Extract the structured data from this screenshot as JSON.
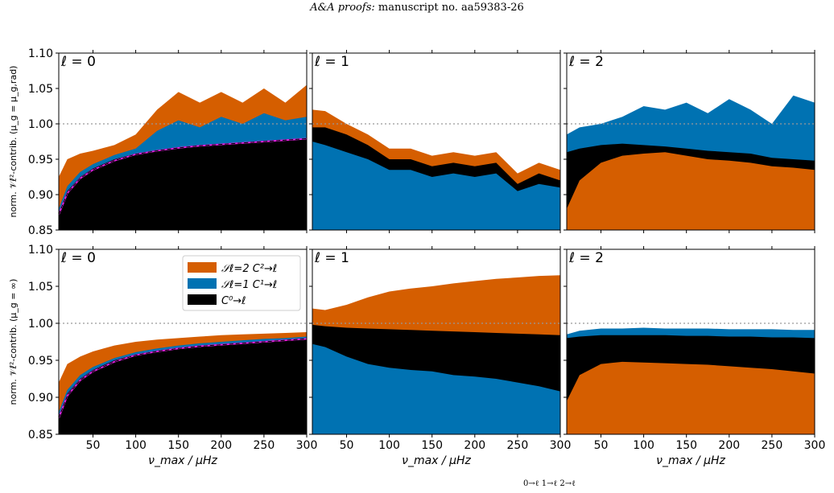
{
  "header": {
    "journal": "A&A proofs:",
    "manuscript": "manuscript no. aa59383-26"
  },
  "footer": {
    "text": "0→ℓ   1→ℓ   2→ℓ"
  },
  "colors": {
    "s2": "#D55E00",
    "s1": "#0072B2",
    "c0": "#000000",
    "fit": "#E020E0",
    "unity": "#999999"
  },
  "xaxis": {
    "label": "ν_max / μHz",
    "ticks": [
      "50",
      "100",
      "150",
      "200",
      "250",
      "300"
    ],
    "range": [
      10,
      300
    ]
  },
  "yaxis": {
    "ticks": [
      "0.85",
      "0.90",
      "0.95",
      "1.00",
      "1.05",
      "1.10"
    ],
    "range": [
      0.85,
      1.1
    ],
    "top_label": "norm. 𝒱ℓ²-contrib. (μ_g = μ_g,rad)",
    "bottom_label": "norm. 𝒱ℓ²-contrib. (μ_g = ∞)"
  },
  "legend": {
    "items": [
      {
        "label": "𝒮ℓ=2 C²→ℓ",
        "color": "#D55E00"
      },
      {
        "label": "𝒮ℓ=1 C¹→ℓ",
        "color": "#0072B2"
      },
      {
        "label": "C⁰→ℓ",
        "color": "#000000"
      }
    ]
  },
  "chart_data": [
    {
      "type": "area",
      "panel": "top-left",
      "title": "ℓ = 0",
      "x": [
        10,
        20,
        35,
        50,
        75,
        100,
        125,
        150,
        175,
        200,
        225,
        250,
        275,
        300
      ],
      "series": [
        {
          "name": "C⁰→ℓ",
          "values": [
            0.875,
            0.905,
            0.925,
            0.937,
            0.95,
            0.958,
            0.963,
            0.967,
            0.97,
            0.972,
            0.974,
            0.976,
            0.978,
            0.98
          ]
        },
        {
          "name": "𝒮ℓ=1 C¹→ℓ",
          "values": [
            0.88,
            0.912,
            0.932,
            0.943,
            0.956,
            0.965,
            0.99,
            1.005,
            0.995,
            1.01,
            1.0,
            1.015,
            1.005,
            1.01
          ]
        },
        {
          "name": "𝒮ℓ=2 C²→ℓ",
          "values": [
            0.925,
            0.95,
            0.958,
            0.962,
            0.97,
            0.985,
            1.02,
            1.045,
            1.03,
            1.045,
            1.03,
            1.05,
            1.03,
            1.055
          ]
        }
      ],
      "fit": [
        0.872,
        0.902,
        0.923,
        0.935,
        0.948,
        0.957,
        0.962,
        0.966,
        0.969,
        0.971,
        0.973,
        0.975,
        0.977,
        0.979
      ]
    },
    {
      "type": "area",
      "panel": "top-middle",
      "title": "ℓ = 1",
      "x": [
        10,
        25,
        50,
        75,
        100,
        125,
        150,
        175,
        200,
        225,
        250,
        275,
        300
      ],
      "series": [
        {
          "name": "𝒮ℓ=1 C¹→ℓ",
          "values": [
            0.975,
            0.97,
            0.96,
            0.95,
            0.935,
            0.935,
            0.925,
            0.93,
            0.925,
            0.93,
            0.905,
            0.915,
            0.91
          ]
        },
        {
          "name": "C⁰→ℓ",
          "values": [
            0.995,
            0.995,
            0.985,
            0.97,
            0.95,
            0.95,
            0.94,
            0.945,
            0.94,
            0.945,
            0.915,
            0.93,
            0.92
          ]
        },
        {
          "name": "𝒮ℓ=2 C²→ℓ",
          "values": [
            1.02,
            1.018,
            1.0,
            0.985,
            0.965,
            0.965,
            0.955,
            0.96,
            0.955,
            0.96,
            0.93,
            0.945,
            0.935
          ]
        }
      ]
    },
    {
      "type": "area",
      "panel": "top-right",
      "title": "ℓ = 2",
      "x": [
        10,
        25,
        50,
        75,
        100,
        125,
        150,
        175,
        200,
        225,
        250,
        275,
        300
      ],
      "series": [
        {
          "name": "𝒮ℓ=2 C²→ℓ",
          "values": [
            0.88,
            0.92,
            0.945,
            0.955,
            0.958,
            0.96,
            0.955,
            0.95,
            0.948,
            0.945,
            0.94,
            0.938,
            0.935
          ]
        },
        {
          "name": "C⁰→ℓ",
          "values": [
            0.96,
            0.965,
            0.97,
            0.972,
            0.97,
            0.968,
            0.965,
            0.962,
            0.96,
            0.958,
            0.952,
            0.95,
            0.948
          ]
        },
        {
          "name": "𝒮ℓ=1 C¹→ℓ",
          "values": [
            0.985,
            0.995,
            1.0,
            1.01,
            1.025,
            1.02,
            1.03,
            1.015,
            1.035,
            1.02,
            1.0,
            1.04,
            1.03
          ]
        }
      ]
    },
    {
      "type": "area",
      "panel": "bottom-left",
      "title": "ℓ = 0",
      "x": [
        10,
        20,
        35,
        50,
        75,
        100,
        125,
        150,
        175,
        200,
        225,
        250,
        275,
        300
      ],
      "series": [
        {
          "name": "C⁰→ℓ",
          "values": [
            0.875,
            0.905,
            0.925,
            0.937,
            0.95,
            0.958,
            0.963,
            0.967,
            0.97,
            0.972,
            0.974,
            0.976,
            0.978,
            0.98
          ]
        },
        {
          "name": "𝒮ℓ=1 C¹→ℓ",
          "values": [
            0.88,
            0.91,
            0.93,
            0.941,
            0.953,
            0.961,
            0.966,
            0.97,
            0.973,
            0.975,
            0.977,
            0.979,
            0.98,
            0.982
          ]
        },
        {
          "name": "𝒮ℓ=2 C²→ℓ",
          "values": [
            0.92,
            0.945,
            0.955,
            0.962,
            0.97,
            0.975,
            0.978,
            0.98,
            0.982,
            0.984,
            0.985,
            0.986,
            0.987,
            0.988
          ]
        }
      ],
      "fit": [
        0.872,
        0.902,
        0.923,
        0.935,
        0.948,
        0.957,
        0.962,
        0.966,
        0.969,
        0.971,
        0.973,
        0.975,
        0.977,
        0.979
      ]
    },
    {
      "type": "area",
      "panel": "bottom-middle",
      "title": "ℓ = 1",
      "x": [
        10,
        25,
        50,
        75,
        100,
        125,
        150,
        175,
        200,
        225,
        250,
        275,
        300
      ],
      "series": [
        {
          "name": "𝒮ℓ=1 C¹→ℓ",
          "values": [
            0.972,
            0.968,
            0.955,
            0.945,
            0.94,
            0.937,
            0.935,
            0.93,
            0.928,
            0.925,
            0.92,
            0.915,
            0.908
          ]
        },
        {
          "name": "C⁰→ℓ",
          "values": [
            0.998,
            0.996,
            0.994,
            0.993,
            0.992,
            0.991,
            0.99,
            0.989,
            0.988,
            0.987,
            0.986,
            0.985,
            0.984
          ]
        },
        {
          "name": "𝒮ℓ=2 C²→ℓ",
          "values": [
            1.02,
            1.018,
            1.025,
            1.035,
            1.043,
            1.047,
            1.05,
            1.054,
            1.057,
            1.06,
            1.062,
            1.064,
            1.065
          ]
        }
      ]
    },
    {
      "type": "area",
      "panel": "bottom-right",
      "title": "ℓ = 2",
      "x": [
        10,
        25,
        50,
        75,
        100,
        125,
        150,
        175,
        200,
        225,
        250,
        275,
        300
      ],
      "series": [
        {
          "name": "𝒮ℓ=2 C²→ℓ",
          "values": [
            0.895,
            0.93,
            0.945,
            0.948,
            0.947,
            0.946,
            0.945,
            0.944,
            0.942,
            0.94,
            0.938,
            0.935,
            0.932
          ]
        },
        {
          "name": "C⁰→ℓ",
          "values": [
            0.98,
            0.982,
            0.984,
            0.984,
            0.984,
            0.984,
            0.983,
            0.983,
            0.982,
            0.982,
            0.981,
            0.981,
            0.98
          ]
        },
        {
          "name": "𝒮ℓ=1 C¹→ℓ",
          "values": [
            0.985,
            0.99,
            0.993,
            0.993,
            0.994,
            0.993,
            0.993,
            0.993,
            0.992,
            0.992,
            0.992,
            0.991,
            0.991
          ]
        }
      ]
    }
  ]
}
